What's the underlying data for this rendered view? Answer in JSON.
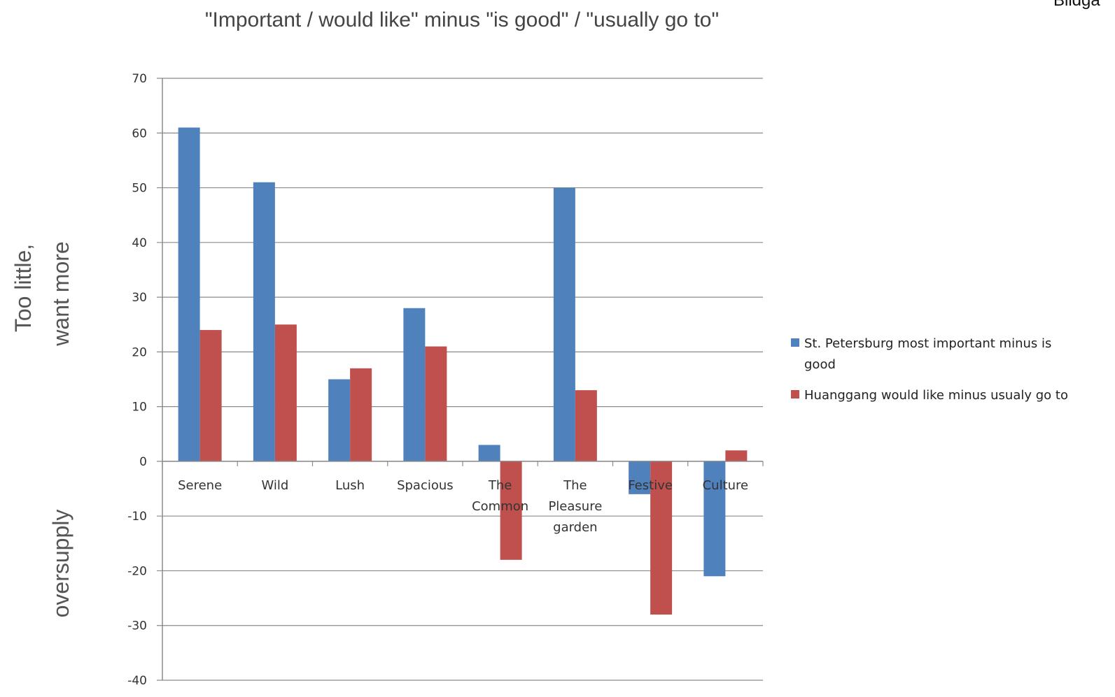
{
  "corner_text": "Bildga",
  "side_labels": {
    "top_line1": "Too little,",
    "top_line2": "want more",
    "bottom": "oversupply"
  },
  "chart_data": {
    "type": "bar",
    "title": "\"Important / would like\" minus \"is good\" / \"usually go to\"",
    "xlabel": "",
    "ylabel": "",
    "ylim": [
      -40,
      70
    ],
    "yticks": [
      70,
      60,
      50,
      40,
      30,
      20,
      10,
      0,
      -10,
      -20,
      -30,
      -40
    ],
    "grid": true,
    "legend_position": "right",
    "categories": [
      [
        "Serene"
      ],
      [
        "Wild"
      ],
      [
        "Lush"
      ],
      [
        "Spacious"
      ],
      [
        "The",
        "Common"
      ],
      [
        "The",
        "Pleasure",
        "garden"
      ],
      [
        "Festive"
      ],
      [
        "Culture"
      ]
    ],
    "series": [
      {
        "name": "St. Petersburg most important minus is good",
        "name_lines": [
          "St. Petersburg most important minus is",
          "good"
        ],
        "color": "#4f81bd",
        "values": [
          61,
          51,
          15,
          28,
          3,
          50,
          -6,
          -21
        ]
      },
      {
        "name": "Huanggang would like minus usualy go to",
        "name_lines": [
          "Huanggang would like minus usualy go to"
        ],
        "color": "#c0504d",
        "values": [
          24,
          25,
          17,
          21,
          -18,
          13,
          -28,
          2
        ]
      }
    ]
  }
}
